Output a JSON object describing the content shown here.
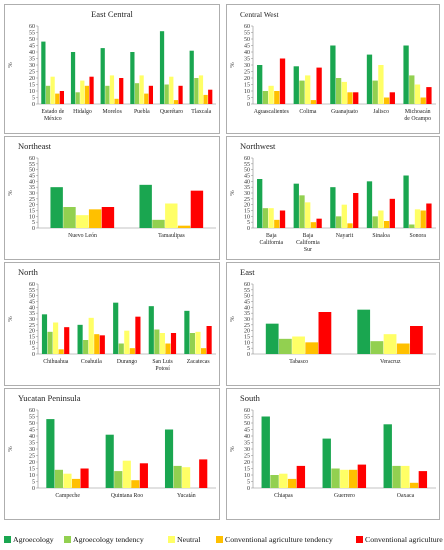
{
  "colors": {
    "Agroecology": "#1aa650",
    "Agroecology tendency": "#92d050",
    "Neutral": "#ffff66",
    "Conventional agriculture tendency": "#ffc000",
    "Conventional agriculture": "#ff0000"
  },
  "legend": [
    "Agroecology",
    "Agroecology tendency",
    "Neutral",
    "Conventional agriculture tendency",
    "Conventional agriculture"
  ],
  "chart_data": [
    {
      "type": "bar",
      "title": "East Central",
      "ylabel": "%",
      "ylim": [
        0,
        60
      ],
      "yticks": [
        0,
        5,
        10,
        15,
        20,
        25,
        30,
        35,
        40,
        45,
        50,
        55,
        60
      ],
      "categories": [
        "Estado de México",
        "Hidalgo",
        "Morelos",
        "Puebla",
        "Querétaro",
        "Tlaxcala"
      ],
      "series": [
        {
          "name": "Agroecology",
          "values": [
            48,
            40,
            43,
            40,
            56,
            41
          ]
        },
        {
          "name": "Agroecology tendency",
          "values": [
            14,
            9,
            14,
            16,
            15,
            20
          ]
        },
        {
          "name": "Neutral",
          "values": [
            21,
            18,
            22,
            22,
            21,
            22
          ]
        },
        {
          "name": "Conventional agriculture tendency",
          "values": [
            8,
            14,
            4,
            8,
            3,
            7
          ]
        },
        {
          "name": "Conventional agriculture",
          "values": [
            10,
            21,
            20,
            14,
            14,
            11
          ]
        }
      ]
    },
    {
      "type": "bar",
      "title": "Central West",
      "ylabel": "%",
      "ylim": [
        0,
        60
      ],
      "yticks": [
        0,
        5,
        10,
        15,
        20,
        25,
        30,
        35,
        40,
        45,
        50,
        55,
        60
      ],
      "categories": [
        "Aguascalientes",
        "Colima",
        "Guanajuato",
        "Jalisco",
        "Michoacán de Ocampo"
      ],
      "series": [
        {
          "name": "Agroecology",
          "values": [
            30,
            29,
            45,
            38,
            45
          ]
        },
        {
          "name": "Agroecology tendency",
          "values": [
            10,
            18,
            20,
            18,
            22
          ]
        },
        {
          "name": "Neutral",
          "values": [
            14,
            22,
            17,
            30,
            15
          ]
        },
        {
          "name": "Conventional agriculture tendency",
          "values": [
            10,
            3,
            9,
            5,
            5
          ]
        },
        {
          "name": "Conventional agriculture",
          "values": [
            35,
            28,
            9,
            9,
            13
          ]
        }
      ]
    },
    {
      "type": "bar",
      "title": "Northeast",
      "ylabel": "%",
      "ylim": [
        0,
        60
      ],
      "yticks": [
        0,
        5,
        10,
        15,
        20,
        25,
        30,
        35,
        40,
        45,
        50,
        55,
        60
      ],
      "categories": [
        "Nuevo León",
        "Tamaulipas"
      ],
      "series": [
        {
          "name": "Agroecology",
          "values": [
            35,
            37
          ]
        },
        {
          "name": "Agroecology tendency",
          "values": [
            18,
            7
          ]
        },
        {
          "name": "Neutral",
          "values": [
            11,
            21
          ]
        },
        {
          "name": "Conventional agriculture tendency",
          "values": [
            16,
            2
          ]
        },
        {
          "name": "Conventional agriculture",
          "values": [
            18,
            32
          ]
        }
      ]
    },
    {
      "type": "bar",
      "title": "Northwest",
      "ylabel": "%",
      "ylim": [
        0,
        60
      ],
      "yticks": [
        0,
        5,
        10,
        15,
        20,
        25,
        30,
        35,
        40,
        45,
        50,
        55,
        60
      ],
      "categories": [
        "Baja California",
        "Baja California Sur",
        "Nayarit",
        "Sinaloa",
        "Sonora"
      ],
      "series": [
        {
          "name": "Agroecology",
          "values": [
            42,
            38,
            35,
            40,
            45
          ]
        },
        {
          "name": "Agroecology tendency",
          "values": [
            17,
            28,
            10,
            10,
            3
          ]
        },
        {
          "name": "Neutral",
          "values": [
            17,
            22,
            20,
            15,
            16
          ]
        },
        {
          "name": "Conventional agriculture tendency",
          "values": [
            7,
            5,
            4,
            6,
            15
          ]
        },
        {
          "name": "Conventional agriculture",
          "values": [
            15,
            8,
            30,
            25,
            21
          ]
        }
      ]
    },
    {
      "type": "bar",
      "title": "North",
      "ylabel": "%",
      "ylim": [
        0,
        60
      ],
      "yticks": [
        0,
        5,
        10,
        15,
        20,
        25,
        30,
        35,
        40,
        45,
        50,
        55,
        60
      ],
      "categories": [
        "Chihuahua",
        "Coahuila",
        "Durango",
        "San Luis Potosí",
        "Zacatecas"
      ],
      "series": [
        {
          "name": "Agroecology",
          "values": [
            34,
            25,
            44,
            41,
            37
          ]
        },
        {
          "name": "Agroecology tendency",
          "values": [
            19,
            12,
            9,
            21,
            18
          ]
        },
        {
          "name": "Neutral",
          "values": [
            27,
            31,
            20,
            18,
            19
          ]
        },
        {
          "name": "Conventional agriculture tendency",
          "values": [
            4,
            17,
            5,
            9,
            5
          ]
        },
        {
          "name": "Conventional agriculture",
          "values": [
            23,
            16,
            32,
            18,
            24
          ]
        }
      ]
    },
    {
      "type": "bar",
      "title": "East",
      "ylabel": "%",
      "ylim": [
        0,
        60
      ],
      "yticks": [
        0,
        5,
        10,
        15,
        20,
        25,
        30,
        35,
        40,
        45,
        50,
        55,
        60
      ],
      "categories": [
        "Tabasco",
        "Veracruz"
      ],
      "series": [
        {
          "name": "Agroecology",
          "values": [
            26,
            38
          ]
        },
        {
          "name": "Agroecology tendency",
          "values": [
            13,
            11
          ]
        },
        {
          "name": "Neutral",
          "values": [
            15,
            17
          ]
        },
        {
          "name": "Conventional agriculture tendency",
          "values": [
            10,
            9
          ]
        },
        {
          "name": "Conventional agriculture",
          "values": [
            36,
            24
          ]
        }
      ]
    },
    {
      "type": "bar",
      "title": "Yucatan Peninsula",
      "ylabel": "%",
      "ylim": [
        0,
        60
      ],
      "yticks": [
        0,
        5,
        10,
        15,
        20,
        25,
        30,
        35,
        40,
        45,
        50,
        55,
        60
      ],
      "categories": [
        "Campeche",
        "Quintana Roo",
        "Yucatán"
      ],
      "series": [
        {
          "name": "Agroecology",
          "values": [
            53,
            41,
            45
          ]
        },
        {
          "name": "Agroecology tendency",
          "values": [
            14,
            13,
            17
          ]
        },
        {
          "name": "Neutral",
          "values": [
            11,
            21,
            16
          ]
        },
        {
          "name": "Conventional agriculture tendency",
          "values": [
            7,
            6,
            0
          ]
        },
        {
          "name": "Conventional agriculture",
          "values": [
            15,
            19,
            22
          ]
        }
      ]
    },
    {
      "type": "bar",
      "title": "South",
      "ylabel": "%",
      "ylim": [
        0,
        60
      ],
      "yticks": [
        0,
        5,
        10,
        15,
        20,
        25,
        30,
        35,
        40,
        45,
        50,
        55,
        60
      ],
      "categories": [
        "Chiapas",
        "Guerrero",
        "Oaxaca"
      ],
      "series": [
        {
          "name": "Agroecology",
          "values": [
            55,
            38,
            49
          ]
        },
        {
          "name": "Agroecology tendency",
          "values": [
            10,
            15,
            17
          ]
        },
        {
          "name": "Neutral",
          "values": [
            11,
            14,
            17
          ]
        },
        {
          "name": "Conventional agriculture tendency",
          "values": [
            7,
            14,
            4
          ]
        },
        {
          "name": "Conventional agriculture",
          "values": [
            17,
            18,
            13
          ]
        }
      ]
    }
  ]
}
